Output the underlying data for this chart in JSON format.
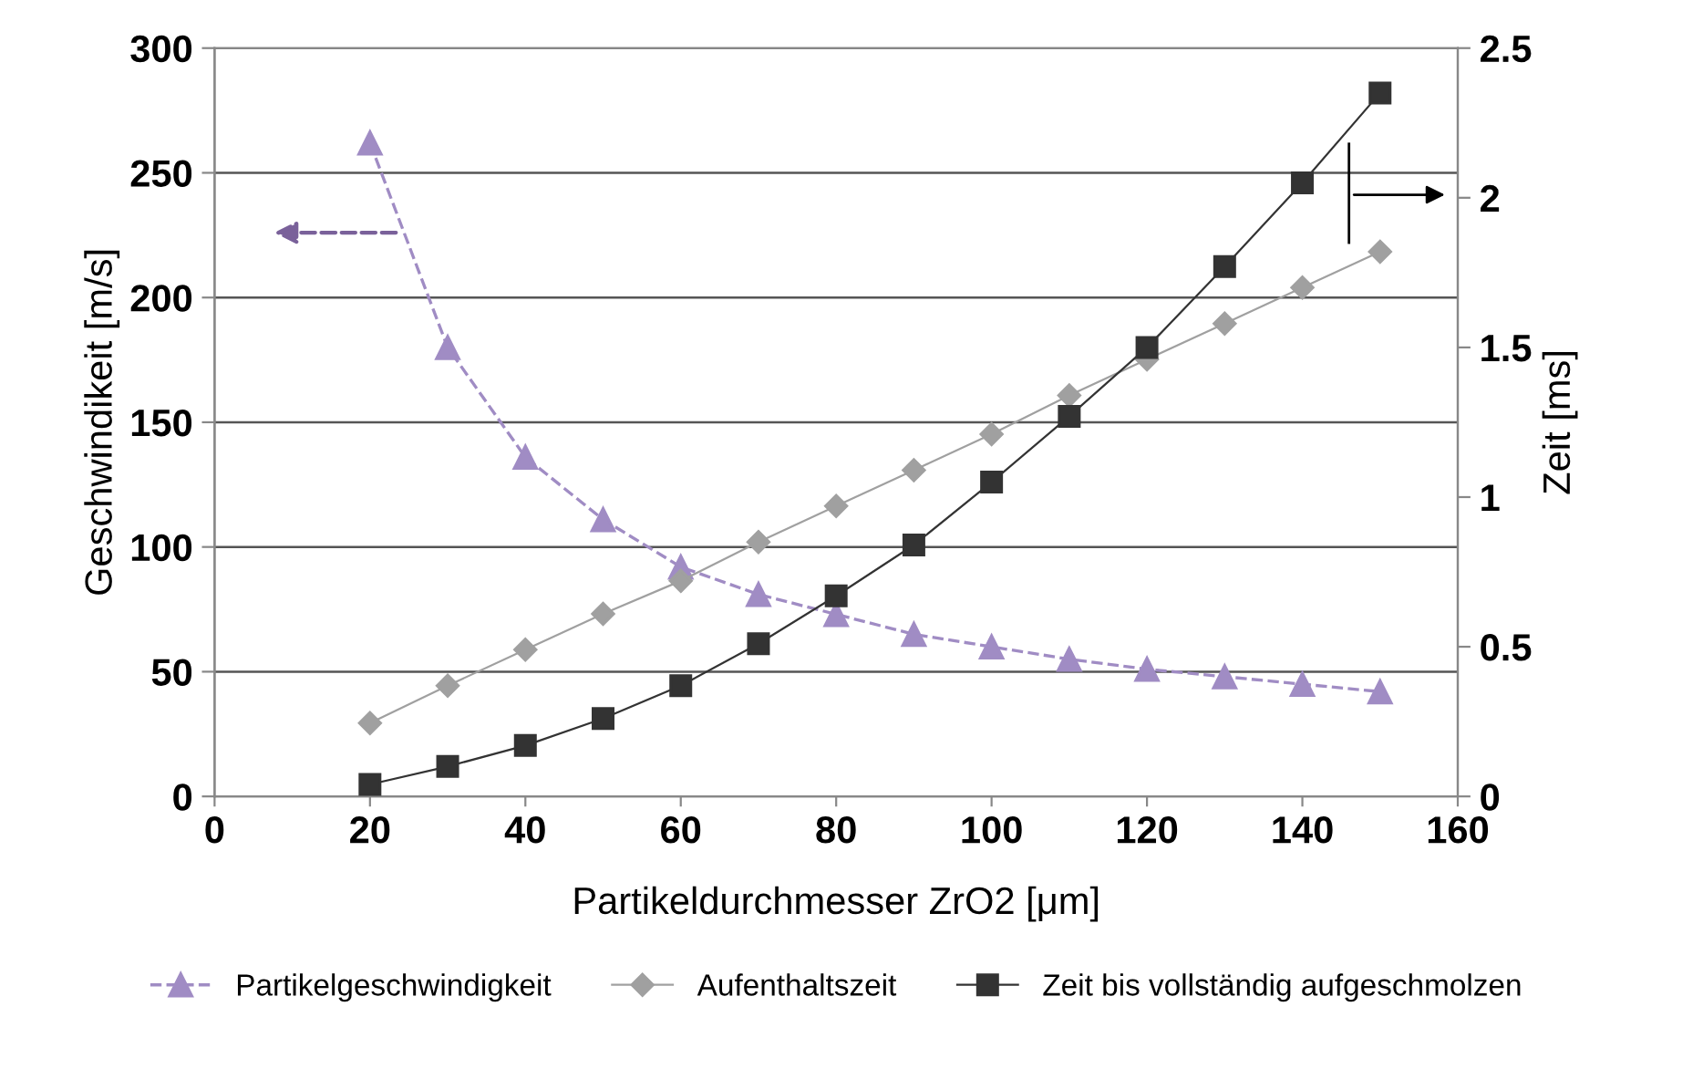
{
  "chart_data": {
    "type": "line",
    "xlabel": "Partikeldurchmesser ZrO2 [μm]",
    "ylabel": "Geschwindikeit [m/s]",
    "y2label": "Zeit [ms]",
    "x": [
      20,
      30,
      40,
      50,
      60,
      70,
      80,
      90,
      100,
      110,
      120,
      130,
      140,
      150
    ],
    "xlim": [
      0,
      160
    ],
    "xticks": [
      0,
      20,
      40,
      60,
      80,
      100,
      120,
      140,
      160
    ],
    "ylim": [
      0,
      300
    ],
    "yticks": [
      0,
      50,
      100,
      150,
      200,
      250,
      300
    ],
    "y2lim": [
      0,
      2.5
    ],
    "y2ticks": [
      0,
      0.5,
      1,
      1.5,
      2,
      2.5
    ],
    "grid": "y",
    "legend": "bottom",
    "series": [
      {
        "name": "Partikelgeschwindigkeit",
        "color": "#a08cc4",
        "marker": "triangle",
        "line_style": "dashed",
        "values": [
          262,
          180,
          136,
          111,
          92,
          81,
          73,
          65,
          60,
          55,
          51,
          48,
          45,
          42
        ]
      },
      {
        "name": "Aufenthaltszeit",
        "color": "#a0a0a0",
        "marker": "diamond",
        "line_style": "solid",
        "axis": "y2",
        "values": [
          0.245,
          0.37,
          0.49,
          0.61,
          0.72,
          0.85,
          0.97,
          1.09,
          1.21,
          1.34,
          1.46,
          1.58,
          1.7,
          1.82
        ]
      },
      {
        "name": "Zeit bis vollständig aufgeschmolzen",
        "color": "#333333",
        "marker": "square",
        "line_style": "solid",
        "axis": "y2",
        "values": [
          0.04,
          0.1,
          0.17,
          0.26,
          0.37,
          0.51,
          0.67,
          0.84,
          1.05,
          1.27,
          1.5,
          1.77,
          2.05,
          2.35
        ]
      }
    ]
  }
}
